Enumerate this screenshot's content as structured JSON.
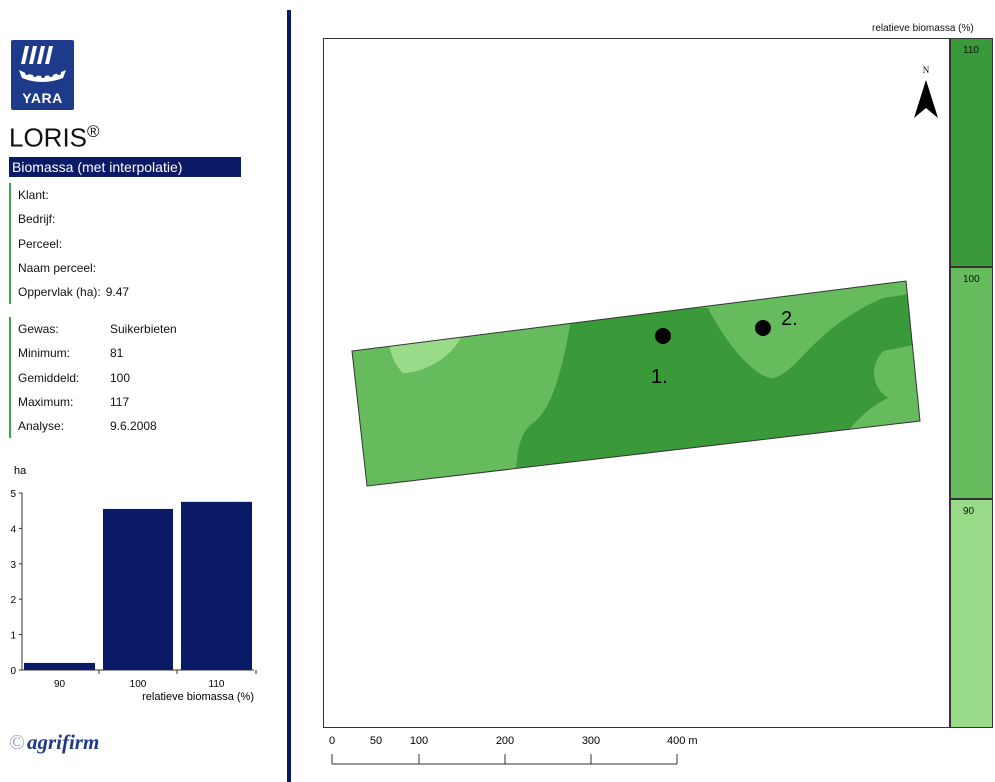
{
  "brand": {
    "logo_text": "YARA",
    "product": "LORIS",
    "product_mark": "®",
    "partner": "agrifirm"
  },
  "report": {
    "title": "Biomassa (met interpolatie)"
  },
  "field_info": [
    {
      "label": "Klant:",
      "value": ""
    },
    {
      "label": "Bedrijf:",
      "value": ""
    },
    {
      "label": "Perceel:",
      "value": ""
    },
    {
      "label": "Naam perceel:",
      "value": ""
    },
    {
      "label": "Oppervlak (ha):",
      "value": "9.47"
    }
  ],
  "crop_info": [
    {
      "label": "Gewas:",
      "value": "Suikerbieten"
    },
    {
      "label": "Minimum:",
      "value": "81"
    },
    {
      "label": "Gemiddeld:",
      "value": "100"
    },
    {
      "label": "Maximum:",
      "value": "117"
    },
    {
      "label": "Analyse:",
      "value": "9.6.2008"
    }
  ],
  "chart_data": {
    "type": "bar",
    "categories": [
      "90",
      "100",
      "110"
    ],
    "values": [
      0.2,
      4.55,
      4.75
    ],
    "ylabel": "ha",
    "xlabel": "relatieve biomassa (%)",
    "ylim": [
      0,
      5
    ],
    "yticks": [
      "0",
      "1",
      "2",
      "3",
      "4",
      "5"
    ],
    "bar_color": "#0b1a66",
    "grid": false
  },
  "map": {
    "north_label": "N",
    "points": [
      "1.",
      "2."
    ],
    "legend_title": "relatieve biomassa (%)",
    "legend": [
      {
        "label": "110",
        "color": "#3a9a3a"
      },
      {
        "label": "100",
        "color": "#66bb5c"
      },
      {
        "label": "90",
        "color": "#9adb8a"
      }
    ],
    "scale": {
      "ticks": [
        "0",
        "50",
        "100",
        "200",
        "300",
        "400 m"
      ]
    }
  },
  "colors": {
    "navy": "#0b1a66",
    "accent": "#3aa64a"
  }
}
